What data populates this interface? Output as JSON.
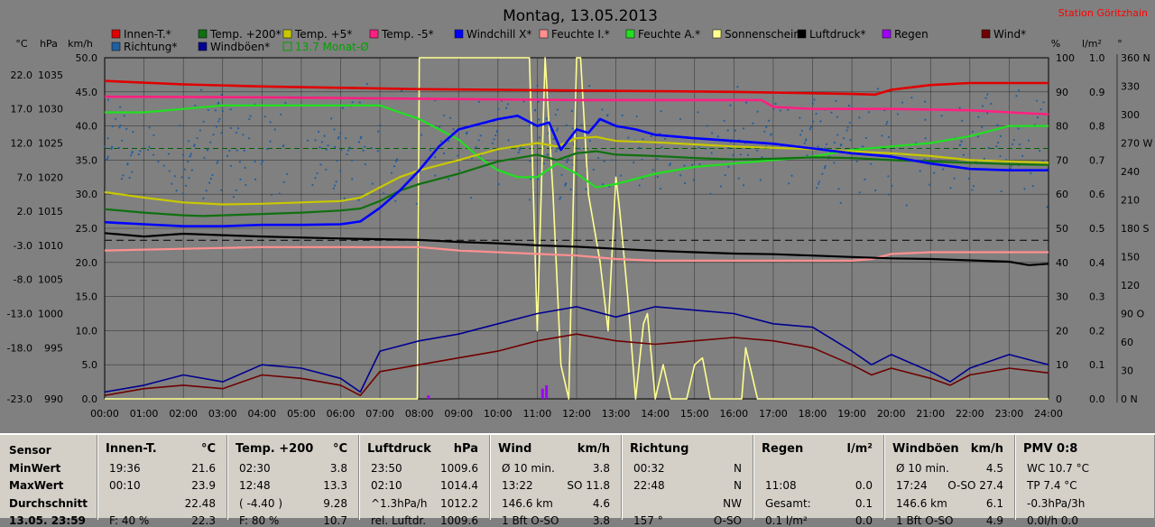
{
  "chart_data": {
    "type": "line",
    "title": "Montag, 13.05.2013",
    "station": "Station Göritzhain",
    "x_ticks": [
      "00:00",
      "01:00",
      "02:00",
      "03:00",
      "04:00",
      "05:00",
      "06:00",
      "07:00",
      "08:00",
      "09:00",
      "10:00",
      "11:00",
      "12:00",
      "13:00",
      "14:00",
      "15:00",
      "16:00",
      "17:00",
      "18:00",
      "19:00",
      "20:00",
      "21:00",
      "22:00",
      "23:00",
      "24:00"
    ],
    "xlim": [
      0,
      24
    ],
    "left_axes": {
      "celsius": {
        "unit": "°C",
        "ticks": [
          "22.0",
          "17.0",
          "12.0",
          "7.0",
          "2.0",
          "-3.0",
          "-8.0",
          "-13.0",
          "-18.0",
          "-23.0"
        ],
        "ylim": [
          -23,
          27
        ]
      },
      "hpa": {
        "unit": "hPa",
        "ticks": [
          "1035",
          "1030",
          "1025",
          "1020",
          "1015",
          "1010",
          "1005",
          "1000",
          "995",
          "990"
        ],
        "ylim": [
          990,
          1040
        ]
      },
      "kmh": {
        "unit": "km/h",
        "ticks": [
          "50.0",
          "45.0",
          "40.0",
          "35.0",
          "30.0",
          "25.0",
          "20.0",
          "15.0",
          "10.0",
          "5.0",
          "0.0"
        ],
        "ylim": [
          0,
          50
        ]
      }
    },
    "right_axes": {
      "percent": {
        "unit": "%",
        "ticks": [
          "100",
          "90",
          "80",
          "70",
          "60",
          "50",
          "40",
          "30",
          "20",
          "10",
          "0"
        ],
        "ylim": [
          0,
          100
        ]
      },
      "lm2": {
        "unit": "l/m²",
        "ticks": [
          "1.0",
          "0.9",
          "0.8",
          "0.7",
          "0.6",
          "0.5",
          "0.4",
          "0.3",
          "0.2",
          "0.1",
          "0.0"
        ],
        "ylim": [
          0,
          1
        ]
      },
      "degree": {
        "unit": "°",
        "ticks": [
          "360 N",
          "330",
          "300",
          "270 W",
          "240",
          "210",
          "180 S",
          "150",
          "120",
          "90 O",
          "60",
          "30",
          "0 N"
        ],
        "ylim": [
          0,
          360
        ]
      }
    },
    "legend": [
      {
        "name": "Innen-T.*",
        "color": "#e00000"
      },
      {
        "name": "Temp. +200*",
        "color": "#107010"
      },
      {
        "name": "Temp. +5*",
        "color": "#c8c800"
      },
      {
        "name": "Temp. -5*",
        "color": "#ff2080"
      },
      {
        "name": "Windchill X*",
        "color": "#0000ff"
      },
      {
        "name": "Feuchte I.*",
        "color": "#ff9090"
      },
      {
        "name": "Feuchte A.*",
        "color": "#20e020"
      },
      {
        "name": "Sonnenschein*",
        "color": "#ffff90"
      },
      {
        "name": "Luftdruck*",
        "color": "#000000"
      },
      {
        "name": "Regen",
        "color": "#a000ff"
      },
      {
        "name": "Wind*",
        "color": "#700000"
      },
      {
        "name": "Richtung*",
        "color": "#2060a0"
      },
      {
        "name": "Windböen*",
        "color": "#000090"
      },
      {
        "name": "13.7 Monat-Ø",
        "color": "#00a000"
      }
    ],
    "grid": true,
    "series": [
      {
        "name": "Innen-T.*",
        "axis": "celsius",
        "color": "#e00000",
        "x": [
          0,
          2,
          4,
          6,
          8,
          10,
          12,
          14,
          16,
          17,
          18,
          19,
          19.6,
          20,
          21,
          22,
          23,
          24
        ],
        "y": [
          23.6,
          23.1,
          22.8,
          22.6,
          22.4,
          22.3,
          22.2,
          22.1,
          22.0,
          21.9,
          21.8,
          21.7,
          21.6,
          22.3,
          23.0,
          23.3,
          23.3,
          23.3
        ]
      },
      {
        "name": "Temp. +200*",
        "axis": "celsius",
        "color": "#107010",
        "x": [
          0,
          1,
          2,
          2.5,
          3,
          4,
          5,
          6,
          6.5,
          7,
          7.5,
          8,
          9,
          10,
          11,
          11.5,
          12,
          12.5,
          13,
          14,
          15,
          16,
          17,
          18,
          19,
          20,
          21,
          22,
          23,
          24
        ],
        "y": [
          4.8,
          4.3,
          3.9,
          3.8,
          3.9,
          4.1,
          4.3,
          4.6,
          4.9,
          6.0,
          7.5,
          8.5,
          10.0,
          11.8,
          12.8,
          12.0,
          13.0,
          13.3,
          12.8,
          12.6,
          12.3,
          12.1,
          12.2,
          12.4,
          12.3,
          12.0,
          11.8,
          11.6,
          11.4,
          11.3
        ]
      },
      {
        "name": "Temp. +5*",
        "axis": "celsius",
        "color": "#c8c800",
        "x": [
          0,
          1,
          2,
          3,
          4,
          5,
          6,
          6.5,
          7,
          7.5,
          8,
          9,
          10,
          11,
          11.5,
          12,
          12.5,
          13,
          14,
          15,
          16,
          17,
          18,
          19,
          20,
          21,
          22,
          23,
          24
        ],
        "y": [
          7.3,
          6.5,
          5.8,
          5.5,
          5.6,
          5.8,
          6.0,
          6.5,
          8.0,
          9.5,
          10.5,
          12.0,
          13.6,
          14.5,
          14.0,
          15.2,
          15.4,
          14.8,
          14.6,
          14.3,
          14.0,
          13.8,
          13.6,
          13.3,
          13.0,
          12.6,
          12.0,
          11.8,
          11.6
        ]
      },
      {
        "name": "Temp. -5*",
        "axis": "celsius",
        "color": "#ff2080",
        "x": [
          0,
          4,
          8,
          12,
          16,
          16.7,
          17,
          18,
          20,
          22,
          23,
          24
        ],
        "y": [
          21.3,
          21.2,
          21.0,
          20.8,
          20.8,
          20.8,
          19.8,
          19.5,
          19.5,
          19.3,
          19.0,
          18.7
        ]
      },
      {
        "name": "Windchill X*",
        "axis": "celsius",
        "color": "#0000ff",
        "x": [
          0,
          1,
          2,
          3,
          4,
          5,
          6,
          6.5,
          7,
          7.5,
          8,
          8.5,
          9,
          10,
          10.5,
          11,
          11.3,
          11.6,
          12,
          12.3,
          12.6,
          13,
          13.5,
          14,
          15,
          16,
          17,
          18,
          19,
          20,
          21,
          22,
          23,
          24
        ],
        "y": [
          2.9,
          2.6,
          2.3,
          2.3,
          2.5,
          2.5,
          2.6,
          3.0,
          5.0,
          7.5,
          10.5,
          14.0,
          16.5,
          18.0,
          18.5,
          17.0,
          17.5,
          13.5,
          16.5,
          16.0,
          18.0,
          17.0,
          16.5,
          15.7,
          15.2,
          14.8,
          14.4,
          13.7,
          13.0,
          12.5,
          11.5,
          10.7,
          10.5,
          10.5
        ]
      },
      {
        "name": "Feuchte I.*",
        "axis": "percent",
        "color": "#ff9090",
        "x": [
          0,
          2,
          4,
          6,
          8,
          9,
          10,
          11,
          12,
          13,
          14,
          16,
          18,
          19,
          19.5,
          20,
          21,
          22,
          23,
          24
        ],
        "y": [
          43.5,
          44,
          44.5,
          44.5,
          44.5,
          43.5,
          43,
          42.5,
          42,
          41,
          40.5,
          40.5,
          40.5,
          40.5,
          41,
          42.5,
          43,
          43,
          43,
          43
        ]
      },
      {
        "name": "Feuchte A.*",
        "axis": "percent",
        "color": "#20e020",
        "x": [
          0,
          1,
          2,
          3,
          4,
          5,
          6,
          7,
          8,
          8.5,
          9,
          9.5,
          10,
          10.5,
          11,
          11.5,
          12,
          12.5,
          13,
          14,
          15,
          16,
          17,
          18,
          19,
          20,
          21,
          22,
          23,
          24
        ],
        "y": [
          84,
          84,
          85,
          86,
          86,
          86,
          86,
          86,
          82,
          79,
          76,
          71,
          67,
          65,
          65,
          69,
          66,
          62,
          63,
          66,
          68,
          69,
          70,
          71,
          73,
          74,
          75,
          77,
          80,
          80
        ]
      },
      {
        "name": "Sonnenschein*",
        "axis": "percent",
        "color": "#ffff90",
        "x": [
          0,
          7.95,
          8.0,
          9,
          10,
          10.8,
          10.9,
          11.0,
          11.2,
          11.4,
          11.6,
          11.8,
          12.0,
          12.1,
          12.3,
          12.6,
          12.8,
          13.0,
          13.1,
          13.3,
          13.5,
          13.7,
          13.8,
          14.0,
          14.2,
          14.4,
          14.6,
          14.8,
          15.0,
          15.2,
          15.4,
          16.2,
          16.3,
          16.5,
          16.6,
          16.7,
          24
        ],
        "y": [
          0,
          0,
          100,
          100,
          100,
          100,
          60,
          20,
          100,
          60,
          10,
          0,
          100,
          100,
          60,
          40,
          20,
          65,
          55,
          30,
          0,
          22,
          25,
          0,
          10,
          0,
          0,
          0,
          10,
          12,
          0,
          0,
          15,
          5,
          0,
          0,
          0
        ]
      },
      {
        "name": "Luftdruck*",
        "axis": "hpa",
        "color": "#000000",
        "x": [
          0,
          1,
          2,
          3,
          4,
          6,
          8,
          9,
          10,
          11,
          12,
          13,
          14,
          15,
          16,
          17,
          18,
          19,
          20,
          21,
          22,
          23,
          23.5,
          24
        ],
        "y": [
          1014.3,
          1013.8,
          1014.2,
          1014.0,
          1013.8,
          1013.5,
          1013.3,
          1013.0,
          1012.8,
          1012.5,
          1012.3,
          1012.0,
          1011.7,
          1011.5,
          1011.3,
          1011.2,
          1011.0,
          1010.8,
          1010.6,
          1010.5,
          1010.3,
          1010.1,
          1009.6,
          1009.8
        ]
      },
      {
        "name": "Wind*",
        "axis": "kmh",
        "color": "#700000",
        "x": [
          0,
          1,
          2,
          3,
          4,
          5,
          6,
          6.5,
          7,
          8,
          9,
          10,
          11,
          12,
          13,
          14,
          15,
          16,
          17,
          18,
          19,
          19.5,
          20,
          21,
          21.5,
          22,
          23,
          24
        ],
        "y": [
          0.5,
          1.5,
          2.0,
          1.5,
          3.5,
          3.0,
          2.0,
          0.5,
          4.0,
          5.0,
          6.0,
          7.0,
          8.5,
          9.5,
          8.5,
          8.0,
          8.5,
          9.0,
          8.5,
          7.5,
          5.0,
          3.5,
          4.5,
          3.0,
          2.0,
          3.5,
          4.5,
          3.8
        ]
      },
      {
        "name": "Windböen*",
        "axis": "kmh",
        "color": "#000090",
        "x": [
          0,
          1,
          2,
          3,
          4,
          5,
          6,
          6.5,
          7,
          8,
          9,
          10,
          11,
          12,
          13,
          14,
          15,
          16,
          17,
          18,
          19,
          19.5,
          20,
          21,
          21.5,
          22,
          23,
          24
        ],
        "y": [
          1.0,
          2.0,
          3.5,
          2.5,
          5.0,
          4.5,
          3.0,
          1.0,
          7.0,
          8.5,
          9.5,
          11.0,
          12.5,
          13.5,
          12.0,
          13.5,
          13.0,
          12.5,
          11.0,
          10.5,
          7.0,
          5.0,
          6.5,
          4.0,
          2.5,
          4.5,
          6.5,
          5.0
        ]
      }
    ],
    "monthly_mean": {
      "label": "13.7 Monat-Ø",
      "value": 13.7,
      "axis": "celsius"
    },
    "reference_line_hpa": 1013.25
  },
  "table": {
    "row_labels": {
      "header": "Sensor",
      "min": "MinWert",
      "max": "MaxWert",
      "avg": "Durchschnitt",
      "extra": "13.05. 23:59"
    },
    "columns": [
      {
        "name": "Innen-T.",
        "unit": "°C",
        "min": [
          "19:36",
          "21.6"
        ],
        "max": [
          "00:10",
          "23.9"
        ],
        "avg": [
          "",
          "22.48"
        ],
        "extra": [
          "F: 40 %",
          "22.3"
        ]
      },
      {
        "name": "Temp. +200",
        "unit": "°C",
        "min": [
          "02:30",
          "3.8"
        ],
        "max": [
          "12:48",
          "13.3"
        ],
        "avg": [
          "( -4.40 )",
          "9.28"
        ],
        "extra": [
          "F: 80 %",
          "10.7"
        ]
      },
      {
        "name": "Luftdruck",
        "unit": "hPa",
        "min": [
          "23:50",
          "1009.6"
        ],
        "max": [
          "02:10",
          "1014.4"
        ],
        "avg": [
          "^1.3hPa/h",
          "1012.2"
        ],
        "extra": [
          "rel. Luftdr.",
          "1009.6"
        ]
      },
      {
        "name": "Wind",
        "unit": "km/h",
        "min": [
          "Ø 10 min.",
          "3.8"
        ],
        "max": [
          "13:22",
          "SO 11.8"
        ],
        "avg": [
          "146.6 km",
          "4.6"
        ],
        "extra": [
          "1 Bft O-SO",
          "3.8"
        ]
      },
      {
        "name": "Richtung",
        "unit": "",
        "min": [
          "00:32",
          "N"
        ],
        "max": [
          "22:48",
          "N"
        ],
        "avg": [
          "",
          "NW"
        ],
        "extra": [
          "157 °",
          "O-SO"
        ]
      },
      {
        "name": "Regen",
        "unit": "l/m²",
        "min": [
          "",
          ""
        ],
        "max": [
          "11:08",
          "0.0"
        ],
        "avg": [
          "Gesamt:",
          "0.1"
        ],
        "extra": [
          "0.1 l/m²",
          "0.0"
        ]
      },
      {
        "name": "Windböen",
        "unit": "km/h",
        "min": [
          "Ø 10 min.",
          "4.5"
        ],
        "max": [
          "17:24",
          "O-SO 27.4"
        ],
        "avg": [
          "146.6 km",
          "6.1"
        ],
        "extra": [
          "1 Bft O-SO",
          "4.9"
        ]
      },
      {
        "name": "PMV 0:8",
        "unit": "",
        "min": [
          "WC 10.7 °C",
          ""
        ],
        "max": [
          "TP 7.4 °C",
          ""
        ],
        "avg": [
          "-0.3hPa/3h",
          ""
        ],
        "extra": [
          "0.0l/h 0.0",
          ""
        ]
      }
    ]
  }
}
